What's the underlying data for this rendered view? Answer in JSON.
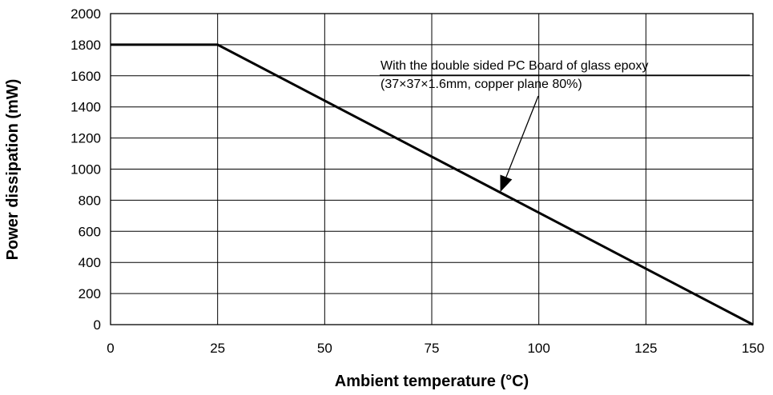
{
  "chart_data": {
    "type": "line",
    "title": "",
    "xlabel": "Ambient temperature  (°C)",
    "ylabel": "Power dissipation (mW)",
    "xlim": [
      0,
      150
    ],
    "ylim": [
      0,
      2000
    ],
    "x_ticks": [
      0,
      25,
      50,
      75,
      100,
      125,
      150
    ],
    "y_ticks": [
      0,
      200,
      400,
      600,
      800,
      1000,
      1200,
      1400,
      1600,
      1800,
      2000
    ],
    "grid": true,
    "series": [
      {
        "x": [
          0,
          25,
          150
        ],
        "y": [
          1800,
          1800,
          0
        ]
      }
    ],
    "annotation": {
      "lines": [
        "With the double sided PC Board of glass epoxy",
        "(37×37×1.6mm, copper plane 80%)"
      ],
      "arrow_target": {
        "x": 91,
        "y": 853
      }
    }
  }
}
